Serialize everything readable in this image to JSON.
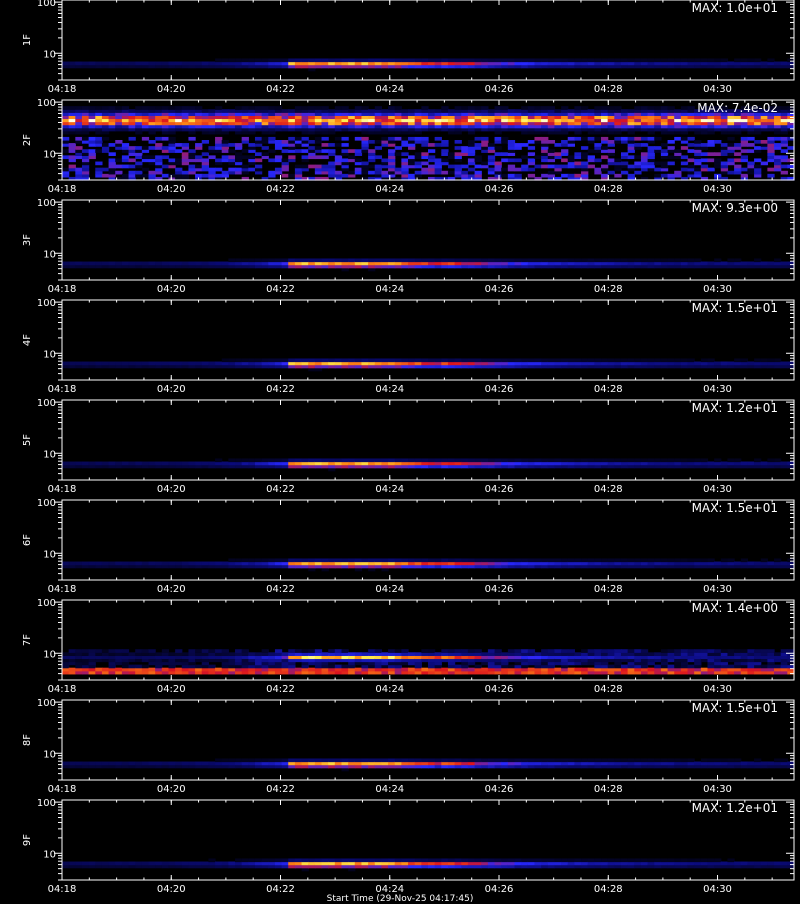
{
  "chart_data": {
    "type": "heatmap",
    "x_tick_labels": [
      "04:18",
      "04:20",
      "04:22",
      "04:24",
      "04:26",
      "04:28",
      "04:30"
    ],
    "x_tick_minutes": [
      0,
      2,
      4,
      6,
      8,
      10,
      12
    ],
    "x_range_minutes": [
      0,
      13.4
    ],
    "y_scale": "log",
    "y_range": [
      3,
      110
    ],
    "y_tick_labels": [
      "10",
      "100"
    ],
    "y_tick_values": [
      10,
      100
    ],
    "colors": {
      "background": "#000000",
      "axis": "#ffffff"
    },
    "panels": [
      {
        "label": "1F",
        "max_label": "MAX: 1.0e+01",
        "pattern": "burst",
        "center_y": 6.2,
        "noise": 0.0
      },
      {
        "label": "2F",
        "max_label": "MAX: 7.4e-02",
        "pattern": "noise_band",
        "center_y": 45,
        "noise": 1.0
      },
      {
        "label": "3F",
        "max_label": "MAX: 9.3e+00",
        "pattern": "burst",
        "center_y": 6.2,
        "noise": 0.0
      },
      {
        "label": "4F",
        "max_label": "MAX: 1.5e+01",
        "pattern": "burst",
        "center_y": 6.2,
        "noise": 0.0
      },
      {
        "label": "5F",
        "max_label": "MAX: 1.2e+01",
        "pattern": "burst",
        "center_y": 6.2,
        "noise": 0.0
      },
      {
        "label": "6F",
        "max_label": "MAX: 1.5e+01",
        "pattern": "burst",
        "center_y": 6.2,
        "noise": 0.0
      },
      {
        "label": "7F",
        "max_label": "MAX: 1.4e+00",
        "pattern": "burst_noisy",
        "center_y": 8.5,
        "noise": 0.5
      },
      {
        "label": "8F",
        "max_label": "MAX: 1.5e+01",
        "pattern": "burst",
        "center_y": 6.2,
        "noise": 0.0
      },
      {
        "label": "9F",
        "max_label": "MAX: 1.2e+01",
        "pattern": "burst",
        "center_y": 6.2,
        "noise": 0.0
      }
    ],
    "xlabel": "Start Time (29-Nov-25 04:17:45)"
  }
}
